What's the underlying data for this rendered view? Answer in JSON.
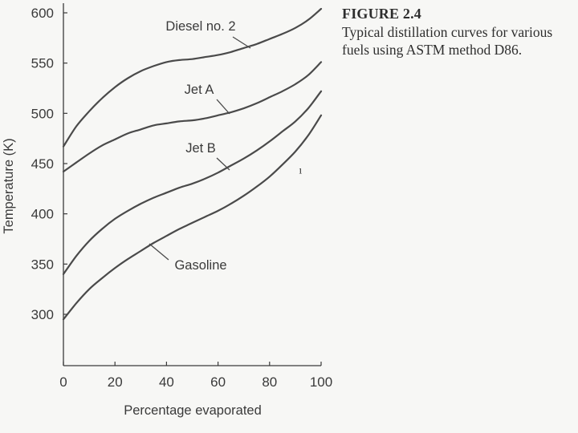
{
  "figure": {
    "label": "FIGURE 2.4",
    "caption": "Typical distillation curves for various fuels using ASTM method D86."
  },
  "chart_data": {
    "type": "line",
    "title": "",
    "xlabel": "Percentage evaporated",
    "ylabel": "Temperature (K)",
    "xlim": [
      0,
      100
    ],
    "ylim": [
      250,
      600
    ],
    "xticks": [
      0,
      20,
      40,
      60,
      80,
      100
    ],
    "yticks": [
      300,
      350,
      400,
      450,
      500,
      550,
      600
    ],
    "grid": false,
    "legend": "inline labels on curves",
    "series": [
      {
        "name": "Diesel no. 2",
        "x": [
          0,
          5,
          10,
          15,
          20,
          25,
          30,
          35,
          40,
          45,
          50,
          55,
          60,
          65,
          70,
          75,
          80,
          85,
          90,
          95,
          100
        ],
        "values": [
          467,
          487,
          502,
          515,
          526,
          535,
          542,
          547,
          551,
          553,
          554,
          556,
          558,
          561,
          565,
          569,
          574,
          579,
          585,
          593,
          604
        ]
      },
      {
        "name": "Jet A",
        "x": [
          0,
          5,
          10,
          15,
          20,
          25,
          30,
          35,
          40,
          45,
          50,
          55,
          60,
          65,
          70,
          75,
          80,
          85,
          90,
          95,
          100
        ],
        "values": [
          442,
          451,
          460,
          468,
          474,
          480,
          484,
          488,
          490,
          492,
          493,
          495,
          498,
          501,
          505,
          510,
          516,
          522,
          529,
          538,
          551
        ]
      },
      {
        "name": "Jet B",
        "x": [
          0,
          5,
          10,
          15,
          20,
          25,
          30,
          35,
          40,
          45,
          50,
          55,
          60,
          65,
          70,
          75,
          80,
          85,
          90,
          95,
          100
        ],
        "values": [
          340,
          358,
          373,
          385,
          395,
          403,
          410,
          416,
          421,
          426,
          430,
          435,
          441,
          448,
          455,
          463,
          472,
          482,
          492,
          505,
          522
        ]
      },
      {
        "name": "Gasoline",
        "x": [
          0,
          5,
          10,
          15,
          20,
          25,
          30,
          35,
          40,
          45,
          50,
          55,
          60,
          65,
          70,
          75,
          80,
          85,
          90,
          95,
          100
        ],
        "values": [
          295,
          311,
          325,
          336,
          346,
          355,
          363,
          371,
          378,
          385,
          391,
          397,
          403,
          410,
          418,
          427,
          437,
          449,
          462,
          478,
          498
        ]
      }
    ],
    "annotations": [
      {
        "text": "Diesel no. 2",
        "series": "Diesel no. 2",
        "anchor": "above curve near x=64"
      },
      {
        "text": "Jet A",
        "series": "Jet A",
        "anchor": "above curve near x=64"
      },
      {
        "text": "Jet B",
        "series": "Jet B",
        "anchor": "above curve near x=64"
      },
      {
        "text": "Gasoline",
        "series": "Gasoline",
        "anchor": "right of curve near x=40"
      }
    ],
    "stray_mark": {
      "text": "ı",
      "x": 92,
      "y": 445
    }
  },
  "colors": {
    "line": "#4a4a4a",
    "axis": "#3a3a3a",
    "text": "#3a3a3a",
    "background": "#f7f7f5"
  }
}
